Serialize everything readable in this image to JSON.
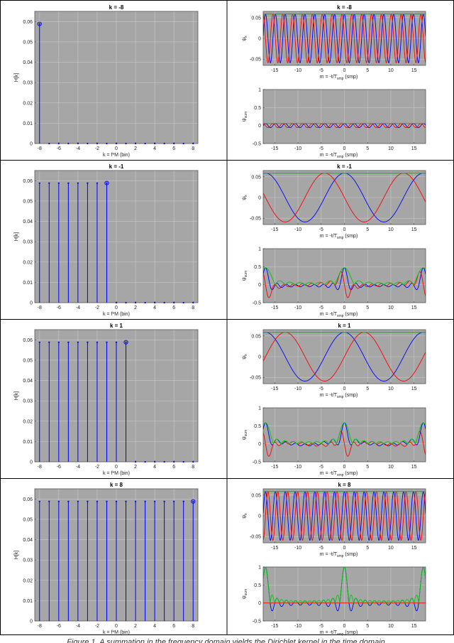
{
  "figure": {
    "caption": "Figure 1. A summation in the frequency domain yields the Dirichlet kernel in the time domain."
  },
  "chart_data": [
    {
      "type": "stem",
      "title": "k = -8",
      "xlabel": "k = f*M (bin)",
      "ylabel": "H[k]",
      "xlim": [
        -8.5,
        8.5
      ],
      "ylim": [
        0,
        0.065
      ],
      "xticks": [
        -8,
        -6,
        -4,
        -2,
        0,
        2,
        4,
        6,
        8
      ],
      "yticks": [
        0,
        0.01,
        0.02,
        0.03,
        0.04,
        0.05,
        0.06
      ],
      "ytick_labels": [
        "0",
        "0.01",
        "0.02",
        "0.03",
        "0.04",
        "0.05",
        "0.06"
      ],
      "grid": true,
      "x": [
        -8,
        -7,
        -6,
        -5,
        -4,
        -3,
        -2,
        -1,
        0,
        1,
        2,
        3,
        4,
        5,
        6,
        7,
        8
      ],
      "y": [
        0.0588,
        0,
        0,
        0,
        0,
        0,
        0,
        0,
        0,
        0,
        0,
        0,
        0,
        0,
        0,
        0,
        0
      ],
      "highlight_x": -8
    },
    {
      "type": "line",
      "title": "k = -8",
      "xlabel": "m = -t/T",
      "xlabel_sub": "smp",
      "xlabel_suffix": " (smp)",
      "ylabel": "ψ",
      "ylabel_sub": "k",
      "xlim": [
        -17.5,
        17.5
      ],
      "ylim": [
        -0.065,
        0.065
      ],
      "xticks": [
        -15,
        -10,
        -5,
        0,
        5,
        10,
        15
      ],
      "yticks": [
        -0.05,
        0,
        0.05
      ],
      "ytick_labels": [
        "-0.05",
        "0",
        "0.05"
      ],
      "grid": true,
      "series": [
        {
          "role": "real",
          "color": "#0000ff",
          "kind": "cos",
          "k": -8,
          "amplitude": 0.0588
        },
        {
          "role": "imag",
          "color": "#ff0000",
          "kind": "sin",
          "k": -8,
          "amplitude": 0.0588
        },
        {
          "role": "magnitude",
          "color": "#00cc00",
          "kind": "const",
          "amplitude": 0.0588
        }
      ]
    },
    {
      "type": "line",
      "title": "",
      "xlabel": "m = -t/T",
      "xlabel_sub": "smp",
      "xlabel_suffix": " (smp)",
      "ylabel": "ψ",
      "ylabel_sub": "sum",
      "xlim": [
        -17.5,
        17.5
      ],
      "ylim": [
        -0.5,
        1
      ],
      "xticks": [
        -15,
        -10,
        -5,
        0,
        5,
        10,
        15
      ],
      "yticks": [
        -0.5,
        0,
        0.5,
        1
      ],
      "ytick_labels": [
        "-0.5",
        "0",
        "0.5",
        "1"
      ],
      "grid": true,
      "series": [
        {
          "role": "real",
          "color": "#0000ff",
          "kind": "partial_cos",
          "k_from": -8,
          "k_to": -8
        },
        {
          "role": "imag",
          "color": "#ff0000",
          "kind": "partial_sin",
          "k_from": -8,
          "k_to": -8
        },
        {
          "role": "magnitude",
          "color": "#00cc00",
          "kind": "partial_abs",
          "k_from": -8,
          "k_to": -8
        }
      ]
    },
    {
      "type": "stem",
      "title": "k = -1",
      "xlabel": "k = f*M (bin)",
      "ylabel": "H[k]",
      "xlim": [
        -8.5,
        8.5
      ],
      "ylim": [
        0,
        0.065
      ],
      "xticks": [
        -8,
        -6,
        -4,
        -2,
        0,
        2,
        4,
        6,
        8
      ],
      "yticks": [
        0,
        0.01,
        0.02,
        0.03,
        0.04,
        0.05,
        0.06
      ],
      "ytick_labels": [
        "0",
        "0.01",
        "0.02",
        "0.03",
        "0.04",
        "0.05",
        "0.06"
      ],
      "grid": true,
      "x": [
        -8,
        -7,
        -6,
        -5,
        -4,
        -3,
        -2,
        -1,
        0,
        1,
        2,
        3,
        4,
        5,
        6,
        7,
        8
      ],
      "y": [
        0.0588,
        0.0588,
        0.0588,
        0.0588,
        0.0588,
        0.0588,
        0.0588,
        0.0588,
        0,
        0,
        0,
        0,
        0,
        0,
        0,
        0,
        0
      ],
      "highlight_x": -1
    },
    {
      "type": "line",
      "title": "k = -1",
      "xlabel": "m = -t/T",
      "xlabel_sub": "smp",
      "xlabel_suffix": " (smp)",
      "ylabel": "ψ",
      "ylabel_sub": "k",
      "xlim": [
        -17.5,
        17.5
      ],
      "ylim": [
        -0.065,
        0.065
      ],
      "xticks": [
        -15,
        -10,
        -5,
        0,
        5,
        10,
        15
      ],
      "yticks": [
        -0.05,
        0,
        0.05
      ],
      "ytick_labels": [
        "-0.05",
        "0",
        "0.05"
      ],
      "grid": true,
      "series": [
        {
          "role": "real",
          "color": "#0000ff",
          "kind": "cos",
          "k": -1,
          "amplitude": 0.0588
        },
        {
          "role": "imag",
          "color": "#ff0000",
          "kind": "sin",
          "k": -1,
          "amplitude": 0.0588
        },
        {
          "role": "magnitude",
          "color": "#00cc00",
          "kind": "const",
          "amplitude": 0.0588
        }
      ]
    },
    {
      "type": "line",
      "title": "",
      "xlabel": "m = -t/T",
      "xlabel_sub": "smp",
      "xlabel_suffix": " (smp)",
      "ylabel": "ψ",
      "ylabel_sub": "sum",
      "xlim": [
        -17.5,
        17.5
      ],
      "ylim": [
        -0.5,
        1
      ],
      "xticks": [
        -15,
        -10,
        -5,
        0,
        5,
        10,
        15
      ],
      "yticks": [
        -0.5,
        0,
        0.5,
        1
      ],
      "ytick_labels": [
        "-0.5",
        "0",
        "0.5",
        "1"
      ],
      "grid": true,
      "series": [
        {
          "role": "real",
          "color": "#0000ff",
          "kind": "partial_cos",
          "k_from": -8,
          "k_to": -1
        },
        {
          "role": "imag",
          "color": "#ff0000",
          "kind": "partial_sin",
          "k_from": -8,
          "k_to": -1
        },
        {
          "role": "magnitude",
          "color": "#00cc00",
          "kind": "partial_abs",
          "k_from": -8,
          "k_to": -1
        }
      ]
    },
    {
      "type": "stem",
      "title": "k = 1",
      "xlabel": "k = f*M (bin)",
      "ylabel": "H[k]",
      "xlim": [
        -8.5,
        8.5
      ],
      "ylim": [
        0,
        0.065
      ],
      "xticks": [
        -8,
        -6,
        -4,
        -2,
        0,
        2,
        4,
        6,
        8
      ],
      "yticks": [
        0,
        0.01,
        0.02,
        0.03,
        0.04,
        0.05,
        0.06
      ],
      "ytick_labels": [
        "0",
        "0.01",
        "0.02",
        "0.03",
        "0.04",
        "0.05",
        "0.06"
      ],
      "grid": true,
      "x": [
        -8,
        -7,
        -6,
        -5,
        -4,
        -3,
        -2,
        -1,
        0,
        1,
        2,
        3,
        4,
        5,
        6,
        7,
        8
      ],
      "y": [
        0.0588,
        0.0588,
        0.0588,
        0.0588,
        0.0588,
        0.0588,
        0.0588,
        0.0588,
        0.0588,
        0.0588,
        0,
        0,
        0,
        0,
        0,
        0,
        0
      ],
      "highlight_x": 1
    },
    {
      "type": "line",
      "title": "k = 1",
      "xlabel": "m = -t/T",
      "xlabel_sub": "smp",
      "xlabel_suffix": " (smp)",
      "ylabel": "ψ",
      "ylabel_sub": "k",
      "xlim": [
        -17.5,
        17.5
      ],
      "ylim": [
        -0.065,
        0.065
      ],
      "xticks": [
        -15,
        -10,
        -5,
        0,
        5,
        10,
        15
      ],
      "yticks": [
        -0.05,
        0,
        0.05
      ],
      "ytick_labels": [
        "-0.05",
        "0",
        "0.05"
      ],
      "grid": true,
      "series": [
        {
          "role": "real",
          "color": "#0000ff",
          "kind": "cos",
          "k": 1,
          "amplitude": 0.0588
        },
        {
          "role": "imag",
          "color": "#ff0000",
          "kind": "sin",
          "k": 1,
          "amplitude": 0.0588
        },
        {
          "role": "magnitude",
          "color": "#00cc00",
          "kind": "const",
          "amplitude": 0.0588
        }
      ]
    },
    {
      "type": "line",
      "title": "",
      "xlabel": "m = -t/T",
      "xlabel_sub": "smp",
      "xlabel_suffix": " (smp)",
      "ylabel": "ψ",
      "ylabel_sub": "sum",
      "xlim": [
        -17.5,
        17.5
      ],
      "ylim": [
        -0.5,
        1
      ],
      "xticks": [
        -15,
        -10,
        -5,
        0,
        5,
        10,
        15
      ],
      "yticks": [
        -0.5,
        0,
        0.5,
        1
      ],
      "ytick_labels": [
        "-0.5",
        "0",
        "0.5",
        "1"
      ],
      "grid": true,
      "series": [
        {
          "role": "real",
          "color": "#0000ff",
          "kind": "partial_cos",
          "k_from": -8,
          "k_to": 1
        },
        {
          "role": "imag",
          "color": "#ff0000",
          "kind": "partial_sin",
          "k_from": -8,
          "k_to": 1
        },
        {
          "role": "magnitude",
          "color": "#00cc00",
          "kind": "partial_abs",
          "k_from": -8,
          "k_to": 1
        }
      ]
    },
    {
      "type": "stem",
      "title": "k = 8",
      "xlabel": "k = f*M (bin)",
      "ylabel": "H[k]",
      "xlim": [
        -8.5,
        8.5
      ],
      "ylim": [
        0,
        0.065
      ],
      "xticks": [
        -8,
        -6,
        -4,
        -2,
        0,
        2,
        4,
        6,
        8
      ],
      "yticks": [
        0,
        0.01,
        0.02,
        0.03,
        0.04,
        0.05,
        0.06
      ],
      "ytick_labels": [
        "0",
        "0.01",
        "0.02",
        "0.03",
        "0.04",
        "0.05",
        "0.06"
      ],
      "grid": true,
      "x": [
        -8,
        -7,
        -6,
        -5,
        -4,
        -3,
        -2,
        -1,
        0,
        1,
        2,
        3,
        4,
        5,
        6,
        7,
        8
      ],
      "y": [
        0.0588,
        0.0588,
        0.0588,
        0.0588,
        0.0588,
        0.0588,
        0.0588,
        0.0588,
        0.0588,
        0.0588,
        0.0588,
        0.0588,
        0.0588,
        0.0588,
        0.0588,
        0.0588,
        0.0588
      ],
      "highlight_x": 8
    },
    {
      "type": "line",
      "title": "k = 8",
      "xlabel": "m = -t/T",
      "xlabel_sub": "smp",
      "xlabel_suffix": " (smp)",
      "ylabel": "ψ",
      "ylabel_sub": "k",
      "xlim": [
        -17.5,
        17.5
      ],
      "ylim": [
        -0.065,
        0.065
      ],
      "xticks": [
        -15,
        -10,
        -5,
        0,
        5,
        10,
        15
      ],
      "yticks": [
        -0.05,
        0,
        0.05
      ],
      "ytick_labels": [
        "-0.05",
        "0",
        "0.05"
      ],
      "grid": true,
      "series": [
        {
          "role": "real",
          "color": "#0000ff",
          "kind": "cos",
          "k": 8,
          "amplitude": 0.0588
        },
        {
          "role": "imag",
          "color": "#ff0000",
          "kind": "sin",
          "k": 8,
          "amplitude": 0.0588
        },
        {
          "role": "magnitude",
          "color": "#00cc00",
          "kind": "const",
          "amplitude": 0.0588
        }
      ]
    },
    {
      "type": "line",
      "title": "",
      "xlabel": "m = -t/T",
      "xlabel_sub": "smp",
      "xlabel_suffix": " (smp)",
      "ylabel": "ψ",
      "ylabel_sub": "sum",
      "xlim": [
        -17.5,
        17.5
      ],
      "ylim": [
        -0.5,
        1
      ],
      "xticks": [
        -15,
        -10,
        -5,
        0,
        5,
        10,
        15
      ],
      "yticks": [
        -0.5,
        0,
        0.5,
        1
      ],
      "ytick_labels": [
        "-0.5",
        "0",
        "0.5",
        "1"
      ],
      "grid": true,
      "series": [
        {
          "role": "real",
          "color": "#0000ff",
          "kind": "partial_cos",
          "k_from": -8,
          "k_to": 8
        },
        {
          "role": "imag",
          "color": "#ff0000",
          "kind": "partial_sin",
          "k_from": -8,
          "k_to": 8
        },
        {
          "role": "magnitude",
          "color": "#00cc00",
          "kind": "partial_abs",
          "k_from": -8,
          "k_to": 8
        }
      ]
    }
  ]
}
